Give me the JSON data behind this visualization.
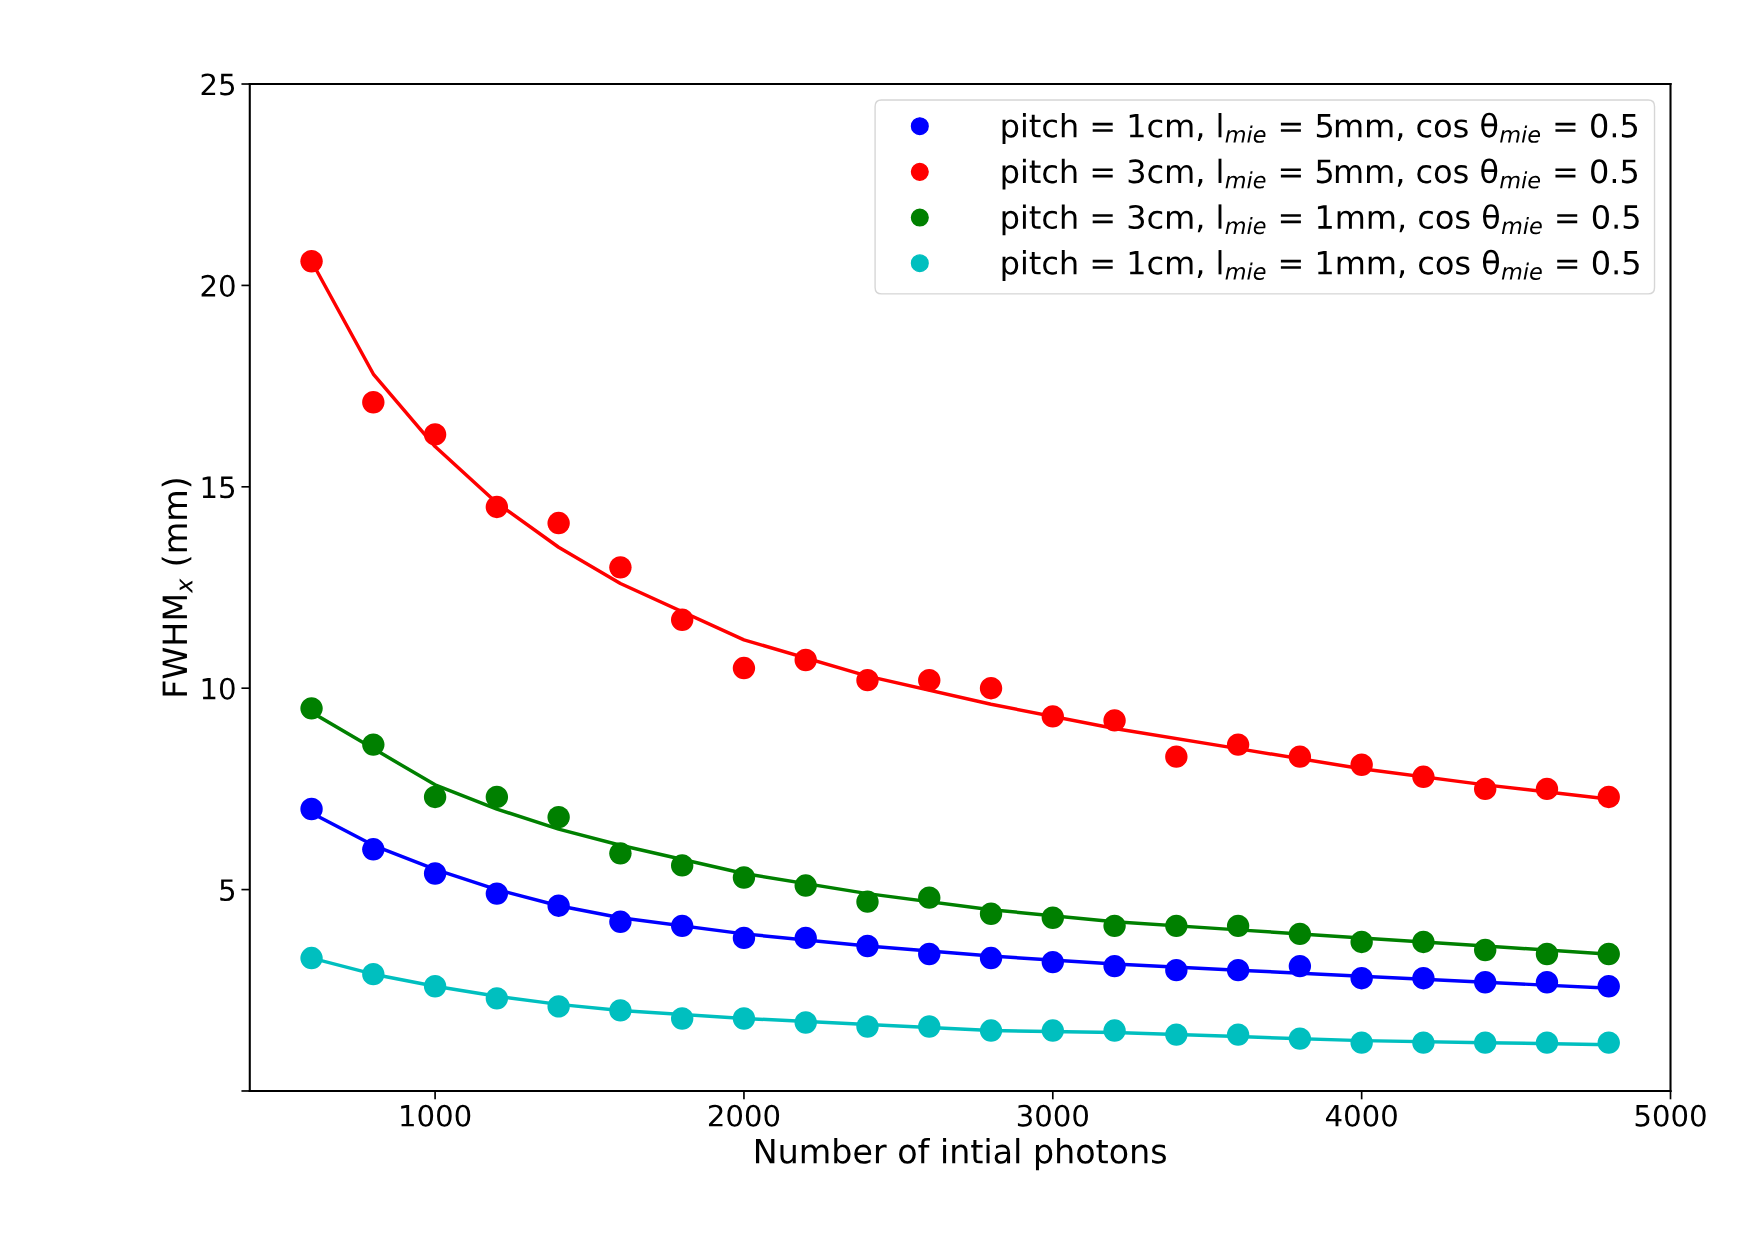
{
  "chart_data": {
    "type": "scatter",
    "xlabel": "Number of intial photons",
    "ylabel": "FWHM$_{x}$ (mm)",
    "xlim": [
      400,
      5000
    ],
    "xticks": [
      1000,
      2000,
      3000,
      4000,
      5000
    ],
    "ylim": [
      0,
      25
    ],
    "yticks": [
      {
        "value": 0,
        "label": null
      },
      5,
      10,
      15,
      20,
      25
    ],
    "grid": false,
    "legend": "top right",
    "marker": "circle",
    "x": [
      600,
      800,
      1000,
      1200,
      1400,
      1600,
      1800,
      2000,
      2200,
      2400,
      2600,
      2800,
      3000,
      3200,
      3400,
      3600,
      3800,
      4000,
      4200,
      4400,
      4600,
      4800
    ],
    "series": [
      {
        "name": "pitch = 1cm, l$_{mie}$ = 5mm, cos θ$_{mie}$ = 0.5",
        "color": "#0000ff",
        "values": [
          7.0,
          6.0,
          5.4,
          4.9,
          4.6,
          4.2,
          4.1,
          3.8,
          3.8,
          3.6,
          3.4,
          3.3,
          3.2,
          3.1,
          3.0,
          3.0,
          3.1,
          2.8,
          2.8,
          2.7,
          2.7,
          2.6
        ]
      },
      {
        "name": "pitch = 3cm, l$_{mie}$ = 5mm, cos θ$_{mie}$ = 0.5",
        "color": "#ff0000",
        "values": [
          20.6,
          17.1,
          16.3,
          14.5,
          14.1,
          13.0,
          11.7,
          10.5,
          10.7,
          10.2,
          10.2,
          10.0,
          9.3,
          9.2,
          8.3,
          8.6,
          8.3,
          8.1,
          7.8,
          7.5,
          7.5,
          7.3
        ]
      },
      {
        "name": "pitch = 3cm, l$_{mie}$ = 1mm, cos θ$_{mie}$ = 0.5",
        "color": "#008000",
        "values": [
          9.5,
          8.6,
          7.3,
          7.3,
          6.8,
          5.9,
          5.6,
          5.3,
          5.1,
          4.7,
          4.8,
          4.4,
          4.3,
          4.1,
          4.1,
          4.1,
          3.9,
          3.7,
          3.7,
          3.5,
          3.4,
          3.4
        ]
      },
      {
        "name": "pitch = 1cm, l$_{mie}$ = 1mm, cos θ$_{mie}$ = 0.5",
        "color": "#00bfbf",
        "values": [
          3.3,
          2.9,
          2.6,
          2.3,
          2.1,
          2.0,
          1.8,
          1.8,
          1.7,
          1.6,
          1.6,
          1.5,
          1.5,
          1.5,
          1.4,
          1.4,
          1.3,
          1.2,
          1.2,
          1.2,
          1.2,
          1.2
        ]
      },
      {
        "type": "line",
        "color": "#0000ff",
        "marker": "none",
        "x": [
          600,
          800,
          1000,
          1200,
          1400,
          1600,
          2000,
          2400,
          2800,
          3200,
          3600,
          4000,
          4400,
          4800
        ],
        "values": [
          6.9,
          6.1,
          5.5,
          5.0,
          4.6,
          4.3,
          3.9,
          3.6,
          3.35,
          3.15,
          3.0,
          2.85,
          2.7,
          2.55
        ]
      },
      {
        "type": "line",
        "color": "#ff0000",
        "marker": "none",
        "x": [
          600,
          800,
          1000,
          1200,
          1400,
          1600,
          2000,
          2400,
          2800,
          3200,
          3600,
          4000,
          4400,
          4800
        ],
        "values": [
          20.6,
          17.8,
          16.0,
          14.6,
          13.5,
          12.6,
          11.2,
          10.3,
          9.6,
          9.0,
          8.5,
          8.0,
          7.6,
          7.25
        ]
      },
      {
        "type": "line",
        "color": "#008000",
        "marker": "none",
        "x": [
          600,
          800,
          1000,
          1200,
          1400,
          1600,
          2000,
          2400,
          2800,
          3200,
          3600,
          4000,
          4400,
          4800
        ],
        "values": [
          9.4,
          8.5,
          7.6,
          7.0,
          6.5,
          6.1,
          5.4,
          4.9,
          4.5,
          4.2,
          4.0,
          3.8,
          3.6,
          3.4
        ]
      },
      {
        "type": "line",
        "color": "#00bfbf",
        "marker": "none",
        "x": [
          600,
          800,
          1000,
          1200,
          1400,
          1600,
          2000,
          2400,
          2800,
          3200,
          3600,
          4000,
          4400,
          4800
        ],
        "values": [
          3.3,
          2.9,
          2.6,
          2.35,
          2.15,
          2.0,
          1.8,
          1.65,
          1.5,
          1.45,
          1.35,
          1.25,
          1.2,
          1.15
        ]
      }
    ]
  }
}
